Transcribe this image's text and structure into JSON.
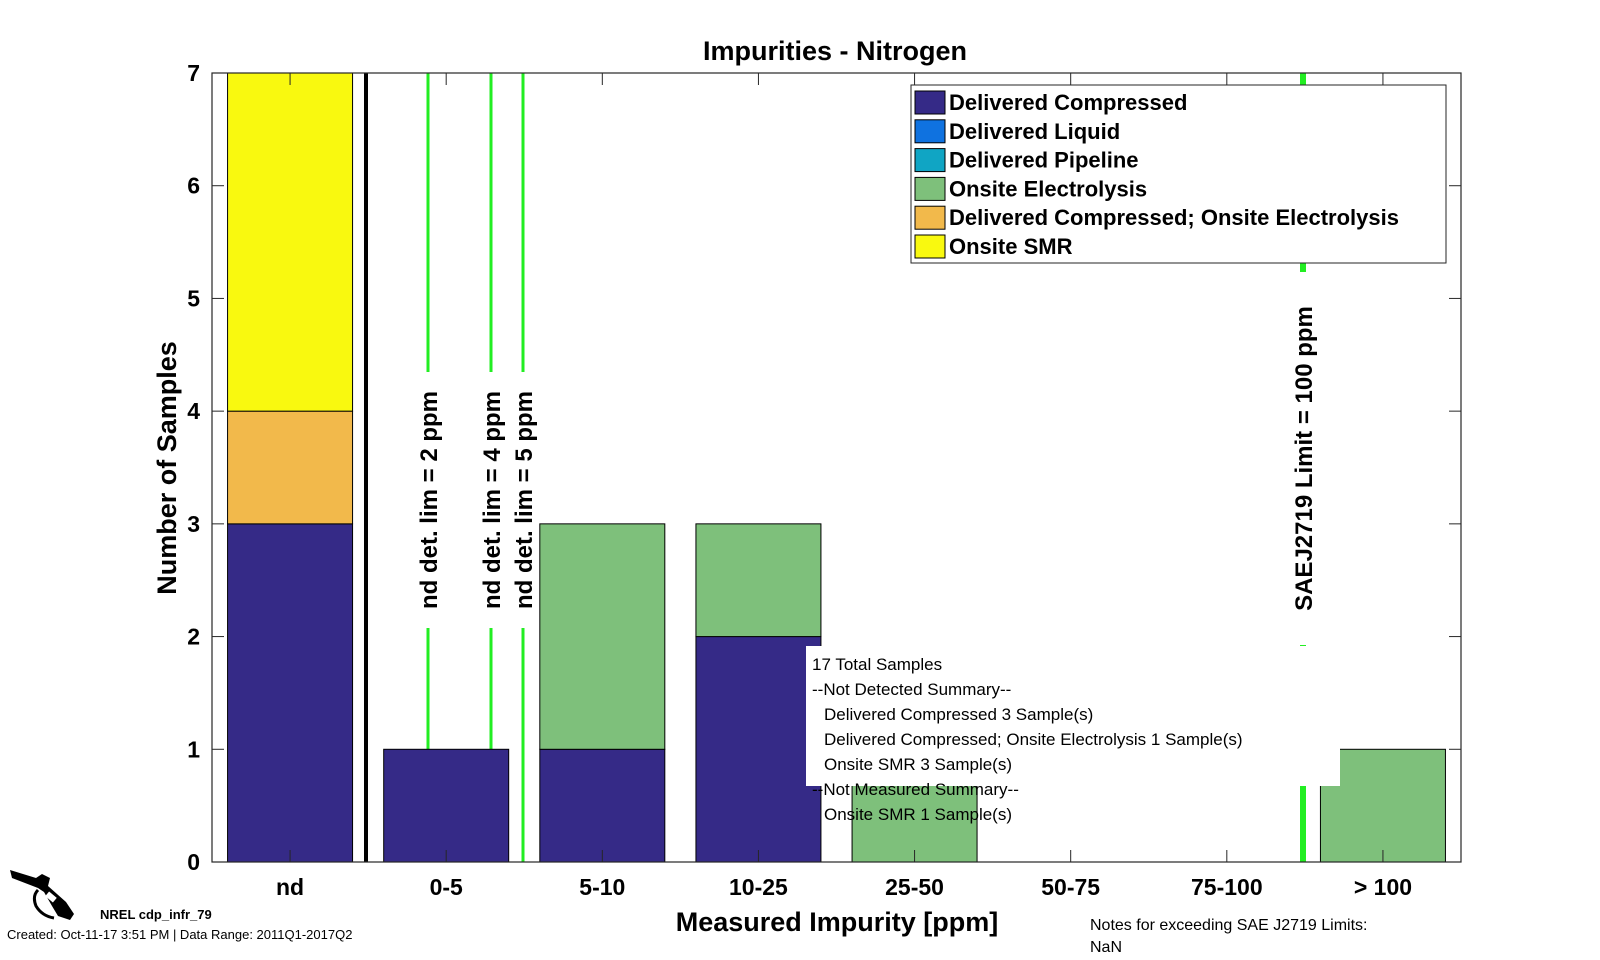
{
  "chart_data": {
    "type": "bar",
    "title": "Impurities - Nitrogen",
    "xlabel": "Measured Impurity [ppm]",
    "ylabel": "Number of Samples",
    "ylim": [
      0,
      7
    ],
    "yticks": [
      0,
      1,
      2,
      3,
      4,
      5,
      6,
      7
    ],
    "categories": [
      "nd",
      "0-5",
      "5-10",
      "10-25",
      "25-50",
      "50-75",
      "75-100",
      "> 100"
    ],
    "stacked": true,
    "series": [
      {
        "name": "Delivered Compressed",
        "color": "#352a87",
        "values": [
          3,
          1,
          1,
          2,
          0,
          0,
          0,
          0
        ]
      },
      {
        "name": "Delivered Liquid",
        "color": "#0f72e0",
        "values": [
          0,
          0,
          0,
          0,
          0,
          0,
          0,
          0
        ]
      },
      {
        "name": "Delivered Pipeline",
        "color": "#10a5c4",
        "values": [
          0,
          0,
          0,
          0,
          0,
          0,
          0,
          0
        ]
      },
      {
        "name": "Onsite Electrolysis",
        "color": "#7ec07b",
        "values": [
          0,
          0,
          2,
          1,
          1,
          0,
          0,
          1
        ]
      },
      {
        "name": "Delivered Compressed; Onsite Electrolysis",
        "color": "#f2b94b",
        "values": [
          1,
          0,
          0,
          0,
          0,
          0,
          0,
          0
        ]
      },
      {
        "name": "Onsite SMR",
        "color": "#f9f90f",
        "values": [
          3,
          0,
          0,
          0,
          0,
          0,
          0,
          0
        ]
      }
    ],
    "legend_position": "top-right",
    "reference_lines": [
      {
        "label": "nd det. lim = 2 ppm",
        "color": "#22ee22"
      },
      {
        "label": "nd det. lim = 4 ppm",
        "color": "#22ee22"
      },
      {
        "label": "nd det. lim = 5 ppm",
        "color": "#22ee22"
      },
      {
        "label": "SAEJ2719 Limit = 100 ppm",
        "color": "#22ee22"
      }
    ],
    "summary_lines": [
      "17 Total Samples",
      "--Not Detected Summary--",
      "  Delivered Compressed 3 Sample(s)",
      "  Delivered Compressed; Onsite Electrolysis 1 Sample(s)",
      "  Onsite SMR 3 Sample(s)",
      "--Not Measured Summary--",
      "  Onsite SMR 1 Sample(s)"
    ]
  },
  "footer": {
    "logo_text": "NREL cdp_infr_79",
    "created": "Created: Oct-11-17  3:51 PM | Data Range: 2011Q1-2017Q2",
    "notes_title": "Notes for exceeding SAE J2719 Limits:",
    "notes_value": "NaN"
  },
  "icons": {
    "logo": "fuel-nozzle-icon"
  }
}
